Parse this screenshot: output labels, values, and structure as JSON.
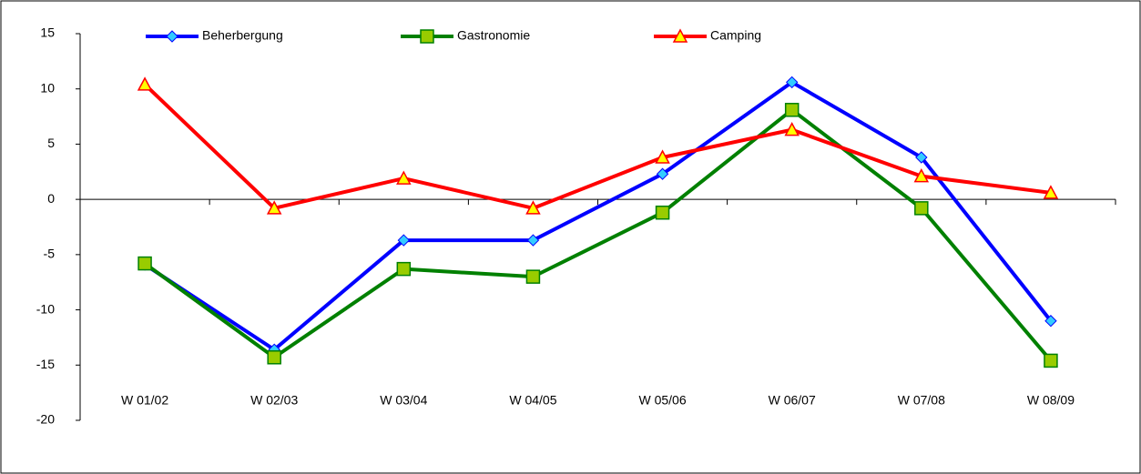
{
  "chart_data": {
    "type": "line",
    "categories": [
      "W 01/02",
      "W 02/03",
      "W 03/04",
      "W 04/05",
      "W 05/06",
      "W 06/07",
      "W 07/08",
      "W 08/09"
    ],
    "series": [
      {
        "name": "Beherbergung",
        "color": "#0000ff",
        "values": [
          -5.9,
          -13.6,
          -3.7,
          -3.7,
          2.3,
          10.6,
          3.8,
          -11.0
        ]
      },
      {
        "name": "Gastronomie",
        "color": "#008000",
        "values": [
          -5.8,
          -14.3,
          -6.3,
          -7.0,
          -1.2,
          8.1,
          -0.8,
          -14.6
        ]
      },
      {
        "name": "Camping",
        "color": "#ff0000",
        "values": [
          10.4,
          -0.8,
          1.9,
          -0.8,
          3.8,
          6.3,
          2.1,
          0.6
        ]
      }
    ],
    "ylim": [
      -20,
      15
    ],
    "yticks": [
      -20,
      -15,
      -10,
      -5,
      0,
      5,
      10,
      15
    ],
    "legend": "top"
  }
}
